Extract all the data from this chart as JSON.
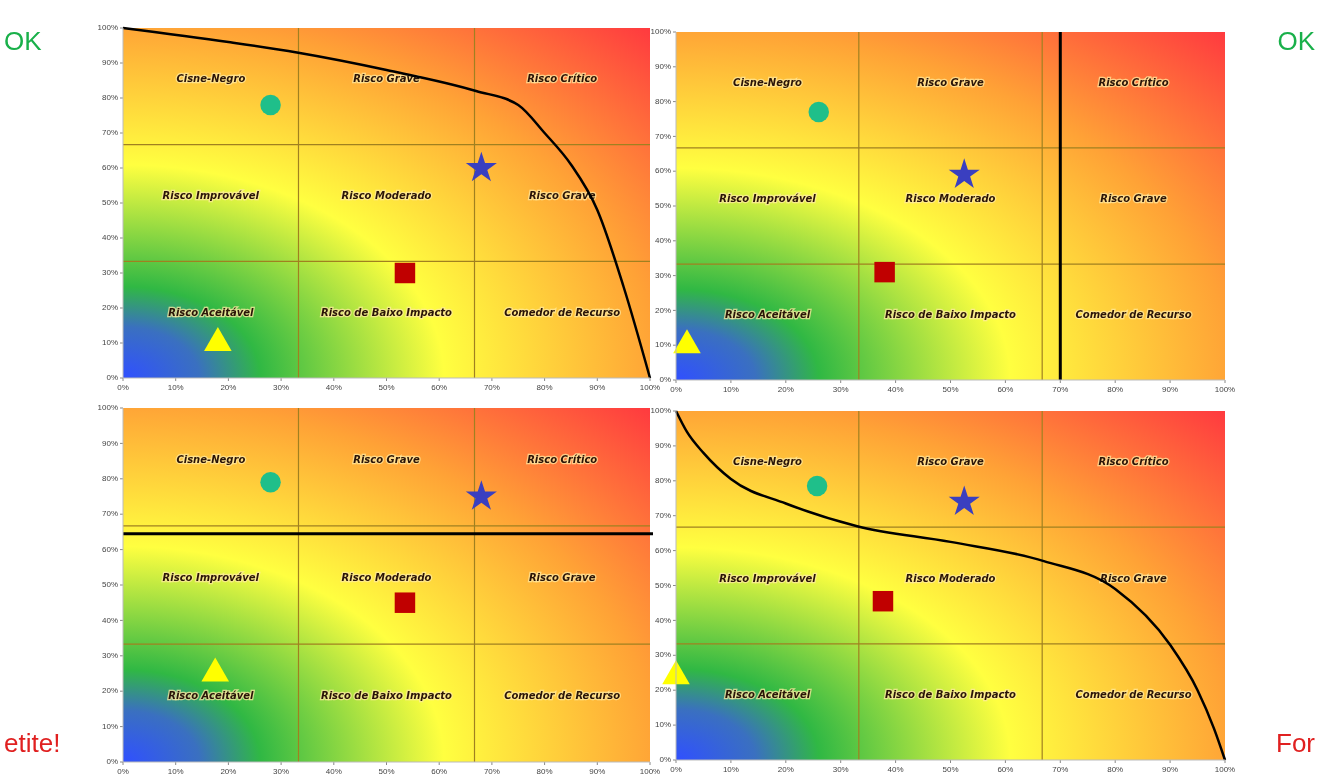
{
  "chart_data": [
    {
      "type": "scatter",
      "xlim": [
        0,
        100
      ],
      "ylim": [
        0,
        100
      ],
      "xticks": [
        {
          "value": 0,
          "label": "0%"
        },
        {
          "value": 10,
          "label": "10%"
        },
        {
          "value": 20,
          "label": "20%"
        },
        {
          "value": 30,
          "label": "30%"
        },
        {
          "value": 40,
          "label": "40%"
        },
        {
          "value": 50,
          "label": "50%"
        },
        {
          "value": 60,
          "label": "60%"
        },
        {
          "value": 70,
          "label": "70%"
        },
        {
          "value": 80,
          "label": "80%"
        },
        {
          "value": 90,
          "label": "90%"
        },
        {
          "value": 100,
          "label": "100%"
        }
      ],
      "yticks": [
        {
          "value": 0,
          "label": "0%"
        },
        {
          "value": 10,
          "label": "10%"
        },
        {
          "value": 20,
          "label": "20%"
        },
        {
          "value": 30,
          "label": "30%"
        },
        {
          "value": 40,
          "label": "40%"
        },
        {
          "value": 50,
          "label": "50%"
        },
        {
          "value": 60,
          "label": "60%"
        },
        {
          "value": 70,
          "label": "70%"
        },
        {
          "value": 80,
          "label": "80%"
        },
        {
          "value": 90,
          "label": "90%"
        },
        {
          "value": 100,
          "label": "100%"
        }
      ],
      "series": [
        {
          "type": "line",
          "color": "#000000",
          "marker": "none",
          "x": [
            0,
            20,
            33,
            50,
            67,
            75,
            80,
            85,
            90,
            95,
            100
          ],
          "values": [
            100,
            96,
            93,
            88,
            82,
            78,
            70,
            61,
            48,
            26,
            0
          ]
        },
        {
          "color": "#1fbf8a",
          "marker": "circle",
          "x": [
            28
          ],
          "values": [
            78
          ]
        },
        {
          "color": "#3a3fc0",
          "marker": "star",
          "x": [
            68
          ],
          "values": [
            60
          ]
        },
        {
          "color": "#c00000",
          "marker": "square",
          "x": [
            53.5
          ],
          "values": [
            30
          ]
        },
        {
          "color": "#ffff00",
          "marker": "triangle",
          "x": [
            18
          ],
          "values": [
            10
          ]
        }
      ],
      "ref_lines": [
        {
          "axis": "x",
          "value": 33.3,
          "color": "#a08020"
        },
        {
          "axis": "x",
          "value": 66.7,
          "color": "#a08020"
        },
        {
          "axis": "y",
          "value": 33.3,
          "color": "#a08020"
        },
        {
          "axis": "y",
          "value": 66.7,
          "color": "#a08020"
        }
      ],
      "annotations": [
        "OK",
        "Cisne-Negro",
        "Risco Grave",
        "Risco Crítico",
        "Risco Improvável",
        "Risco Moderado",
        "Risco Grave",
        "Risco Aceitável",
        "Risco de Baixo Impacto",
        "Comedor de Recurso"
      ]
    },
    {
      "type": "scatter",
      "xlim": [
        0,
        100
      ],
      "ylim": [
        0,
        100
      ],
      "xticks": [
        {
          "value": 0,
          "label": "0%"
        },
        {
          "value": 10,
          "label": "10%"
        },
        {
          "value": 20,
          "label": "20%"
        },
        {
          "value": 30,
          "label": "30%"
        },
        {
          "value": 40,
          "label": "40%"
        },
        {
          "value": 50,
          "label": "50%"
        },
        {
          "value": 60,
          "label": "60%"
        },
        {
          "value": 70,
          "label": "70%"
        },
        {
          "value": 80,
          "label": "80%"
        },
        {
          "value": 90,
          "label": "90%"
        },
        {
          "value": 100,
          "label": "100%"
        }
      ],
      "yticks": [
        {
          "value": 0,
          "label": "0%"
        },
        {
          "value": 10,
          "label": "10%"
        },
        {
          "value": 20,
          "label": "20%"
        },
        {
          "value": 30,
          "label": "30%"
        },
        {
          "value": 40,
          "label": "40%"
        },
        {
          "value": 50,
          "label": "50%"
        },
        {
          "value": 60,
          "label": "60%"
        },
        {
          "value": 70,
          "label": "70%"
        },
        {
          "value": 80,
          "label": "80%"
        },
        {
          "value": 90,
          "label": "90%"
        },
        {
          "value": 100,
          "label": "100%"
        }
      ],
      "series": [
        {
          "color": "#1fbf8a",
          "marker": "circle",
          "x": [
            26
          ],
          "values": [
            77
          ]
        },
        {
          "color": "#3a3fc0",
          "marker": "star",
          "x": [
            52.5
          ],
          "values": [
            59
          ]
        },
        {
          "color": "#c00000",
          "marker": "square",
          "x": [
            38
          ],
          "values": [
            31
          ]
        },
        {
          "color": "#ffff00",
          "marker": "triangle",
          "x": [
            2
          ],
          "values": [
            10
          ]
        }
      ],
      "ref_lines": [
        {
          "axis": "x",
          "value": 33.3,
          "color": "#a08020"
        },
        {
          "axis": "x",
          "value": 66.7,
          "color": "#a08020"
        },
        {
          "axis": "y",
          "value": 33.3,
          "color": "#a08020"
        },
        {
          "axis": "y",
          "value": 66.7,
          "color": "#a08020"
        },
        {
          "axis": "x",
          "value": 70,
          "color": "#000000"
        }
      ],
      "annotations": [
        "OK",
        "Cisne-Negro",
        "Risco Grave",
        "Risco Crítico",
        "Risco Improvável",
        "Risco Moderado",
        "Risco Grave",
        "Risco Aceitável",
        "Risco de Baixo Impacto",
        "Comedor de Recurso"
      ]
    },
    {
      "type": "scatter",
      "xlim": [
        0,
        100
      ],
      "ylim": [
        0,
        100
      ],
      "xticks": [
        {
          "value": 0,
          "label": "0%"
        },
        {
          "value": 10,
          "label": "10%"
        },
        {
          "value": 20,
          "label": "20%"
        },
        {
          "value": 30,
          "label": "30%"
        },
        {
          "value": 40,
          "label": "40%"
        },
        {
          "value": 50,
          "label": "50%"
        },
        {
          "value": 60,
          "label": "60%"
        },
        {
          "value": 70,
          "label": "70%"
        },
        {
          "value": 80,
          "label": "80%"
        },
        {
          "value": 90,
          "label": "90%"
        },
        {
          "value": 100,
          "label": "100%"
        }
      ],
      "yticks": [
        {
          "value": 0,
          "label": "0%"
        },
        {
          "value": 10,
          "label": "10%"
        },
        {
          "value": 20,
          "label": "20%"
        },
        {
          "value": 30,
          "label": "30%"
        },
        {
          "value": 40,
          "label": "40%"
        },
        {
          "value": 50,
          "label": "50%"
        },
        {
          "value": 60,
          "label": "60%"
        },
        {
          "value": 70,
          "label": "70%"
        },
        {
          "value": 80,
          "label": "80%"
        },
        {
          "value": 90,
          "label": "90%"
        },
        {
          "value": 100,
          "label": "100%"
        }
      ],
      "series": [
        {
          "color": "#1fbf8a",
          "marker": "circle",
          "x": [
            28
          ],
          "values": [
            79
          ]
        },
        {
          "color": "#3a3fc0",
          "marker": "star",
          "x": [
            68
          ],
          "values": [
            75
          ]
        },
        {
          "color": "#c00000",
          "marker": "square",
          "x": [
            53.5
          ],
          "values": [
            45
          ]
        },
        {
          "color": "#ffff00",
          "marker": "triangle",
          "x": [
            17.5
          ],
          "values": [
            25
          ]
        }
      ],
      "ref_lines": [
        {
          "axis": "x",
          "value": 33.3,
          "color": "#a08020"
        },
        {
          "axis": "x",
          "value": 66.7,
          "color": "#a08020"
        },
        {
          "axis": "y",
          "value": 33.3,
          "color": "#a08020"
        },
        {
          "axis": "y",
          "value": 66.7,
          "color": "#a08020"
        },
        {
          "axis": "y",
          "value": 64.5,
          "color": "#000000"
        }
      ],
      "annotations": [
        "etite!",
        "Cisne-Negro",
        "Risco Grave",
        "Risco Crítico",
        "Risco Improvável",
        "Risco Moderado",
        "Risco Grave",
        "Risco Aceitável",
        "Risco de Baixo Impacto",
        "Comedor de Recurso"
      ]
    },
    {
      "type": "scatter",
      "xlim": [
        0,
        100
      ],
      "ylim": [
        0,
        100
      ],
      "xticks": [
        {
          "value": 0,
          "label": "0%"
        },
        {
          "value": 10,
          "label": "10%"
        },
        {
          "value": 20,
          "label": "20%"
        },
        {
          "value": 30,
          "label": "30%"
        },
        {
          "value": 40,
          "label": "40%"
        },
        {
          "value": 50,
          "label": "50%"
        },
        {
          "value": 60,
          "label": "60%"
        },
        {
          "value": 70,
          "label": "70%"
        },
        {
          "value": 80,
          "label": "80%"
        },
        {
          "value": 90,
          "label": "90%"
        },
        {
          "value": 100,
          "label": "100%"
        }
      ],
      "yticks": [
        {
          "value": 0,
          "label": "0%"
        },
        {
          "value": 10,
          "label": "10%"
        },
        {
          "value": 20,
          "label": "20%"
        },
        {
          "value": 30,
          "label": "30%"
        },
        {
          "value": 40,
          "label": "40%"
        },
        {
          "value": 50,
          "label": "50%"
        },
        {
          "value": 60,
          "label": "60%"
        },
        {
          "value": 70,
          "label": "70%"
        },
        {
          "value": 80,
          "label": "80%"
        },
        {
          "value": 90,
          "label": "90%"
        },
        {
          "value": 100,
          "label": "100%"
        }
      ],
      "series": [
        {
          "type": "line",
          "color": "#000000",
          "marker": "none",
          "x": [
            0,
            2,
            5,
            10,
            20,
            33,
            50,
            67,
            80,
            90,
            95,
            98,
            100
          ],
          "values": [
            100,
            94,
            88,
            80.5,
            73.5,
            67,
            62.5,
            57,
            49,
            33,
            20,
            9,
            0
          ]
        },
        {
          "color": "#1fbf8a",
          "marker": "circle",
          "x": [
            25.7
          ],
          "values": [
            78.5
          ]
        },
        {
          "color": "#3a3fc0",
          "marker": "star",
          "x": [
            52.5
          ],
          "values": [
            74
          ]
        },
        {
          "color": "#c00000",
          "marker": "square",
          "x": [
            37.7
          ],
          "values": [
            45.5
          ]
        },
        {
          "color": "#ffff00",
          "marker": "triangle",
          "x": [
            0
          ],
          "values": [
            24
          ]
        }
      ],
      "ref_lines": [
        {
          "axis": "x",
          "value": 33.3,
          "color": "#a08020"
        },
        {
          "axis": "x",
          "value": 66.7,
          "color": "#a08020"
        },
        {
          "axis": "y",
          "value": 33.3,
          "color": "#a08020"
        },
        {
          "axis": "y",
          "value": 66.7,
          "color": "#a08020"
        }
      ],
      "annotations": [
        "For",
        "Cisne-Negro",
        "Risco Grave",
        "Risco Crítico",
        "Risco Improvável",
        "Risco Moderado",
        "Risco Grave",
        "Risco Aceitável",
        "Risco de Baixo Impacto",
        "Comedor de Recurso"
      ]
    }
  ]
}
